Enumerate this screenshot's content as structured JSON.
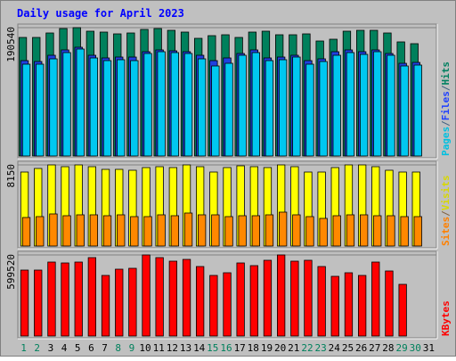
{
  "chart_data": {
    "type": "bar",
    "title": "Daily usage for April 2023",
    "grid": true,
    "categories": [
      "1",
      "2",
      "3",
      "4",
      "5",
      "6",
      "7",
      "8",
      "9",
      "10",
      "11",
      "12",
      "13",
      "14",
      "15",
      "16",
      "17",
      "18",
      "19",
      "20",
      "21",
      "22",
      "23",
      "24",
      "25",
      "26",
      "27",
      "28",
      "29",
      "30",
      "31"
    ],
    "weekend_days": [
      "1",
      "2",
      "8",
      "9",
      "15",
      "16",
      "22",
      "23",
      "29",
      "30"
    ],
    "panels": [
      {
        "id": "pages_files_hits",
        "ymax_label": "190540",
        "ylim": [
          0,
          190540
        ],
        "right_labels": [
          {
            "text": "Pages",
            "color": "#00c0e0"
          },
          {
            "text": "/",
            "color": "#406080"
          },
          {
            "text": "Files",
            "color": "#2040ff"
          },
          {
            "text": "/",
            "color": "#406080"
          },
          {
            "text": "Hits",
            "color": "#008060"
          }
        ],
        "series": [
          {
            "name": "Hits",
            "color": "#00805c",
            "values": [
              176000,
              176000,
              182000,
              189000,
              190540,
              185000,
              184000,
              181000,
              183000,
              188000,
              189000,
              186000,
              184000,
              175000,
              179000,
              180000,
              176000,
              184000,
              185000,
              180000,
              180000,
              181000,
              171000,
              174000,
              185000,
              186000,
              186000,
              182000,
              170000,
              167000,
              null
            ]
          },
          {
            "name": "Files",
            "color": "#2040e0",
            "values": [
              141000,
              140000,
              149000,
              157000,
              161000,
              149000,
              145000,
              147000,
              147000,
              155000,
              157000,
              156000,
              155000,
              149000,
              141000,
              145000,
              152000,
              157000,
              146000,
              147000,
              150000,
              141000,
              144000,
              155000,
              158000,
              155000,
              158000,
              152000,
              138000,
              139000,
              null
            ]
          },
          {
            "name": "Pages",
            "color": "#00c8f0",
            "values": [
              136000,
              136000,
              144000,
              154000,
              159000,
              145000,
              141000,
              143000,
              142000,
              152000,
              155000,
              153000,
              152000,
              144000,
              134000,
              138000,
              149000,
              154000,
              142000,
              143000,
              147000,
              136000,
              140000,
              150000,
              153000,
              151000,
              155000,
              149000,
              133000,
              135000,
              null
            ]
          }
        ]
      },
      {
        "id": "sites_visits",
        "ymax_label": "8150",
        "ylim": [
          0,
          8150
        ],
        "right_labels": [
          {
            "text": "Sites",
            "color": "#ff8000"
          },
          {
            "text": "/",
            "color": "#806040"
          },
          {
            "text": "Visits",
            "color": "#d8d800"
          }
        ],
        "series": [
          {
            "name": "Visits",
            "color": "#ffff00",
            "values": [
              7420,
              7820,
              8150,
              7950,
              8120,
              7930,
              7720,
              7680,
              7620,
              7910,
              7930,
              7850,
              8150,
              7950,
              7390,
              7850,
              8050,
              7980,
              7910,
              8150,
              7980,
              7460,
              7460,
              7850,
              8150,
              8150,
              7970,
              7650,
              7440,
              7400,
              null
            ]
          },
          {
            "name": "Sites",
            "color": "#ff8800",
            "values": [
              2880,
              2920,
              3220,
              3080,
              3160,
              3090,
              3010,
              3100,
              2920,
              2940,
              3150,
              3040,
              3270,
              3160,
              3160,
              2920,
              3010,
              3080,
              3130,
              3420,
              3160,
              2930,
              2760,
              3010,
              3170,
              3170,
              3020,
              3010,
              2960,
              2940,
              null
            ]
          }
        ]
      },
      {
        "id": "kbytes",
        "ymax_label": "599520",
        "ylim": [
          0,
          599520
        ],
        "right_labels": [
          {
            "text": "KBytes",
            "color": "#ff0000"
          }
        ],
        "series": [
          {
            "name": "KBytes",
            "color": "#ff0000",
            "values": [
              485000,
              485000,
              546000,
              542000,
              545000,
              580000,
              448000,
              493000,
              498000,
              599520,
              583000,
              552000,
              567000,
              517000,
              450000,
              467000,
              538000,
              519000,
              559000,
              599520,
              552000,
              563000,
              515000,
              443000,
              471000,
              450000,
              546000,
              480000,
              379000,
              0,
              null
            ]
          }
        ]
      }
    ]
  },
  "colors": {
    "panel_bg": "#c0c0c0",
    "frame_dark": "#808080",
    "title": "#0000ff",
    "weekday_label": "#000000",
    "weekend_label": "#00805c",
    "bar_outline": "#000000"
  }
}
